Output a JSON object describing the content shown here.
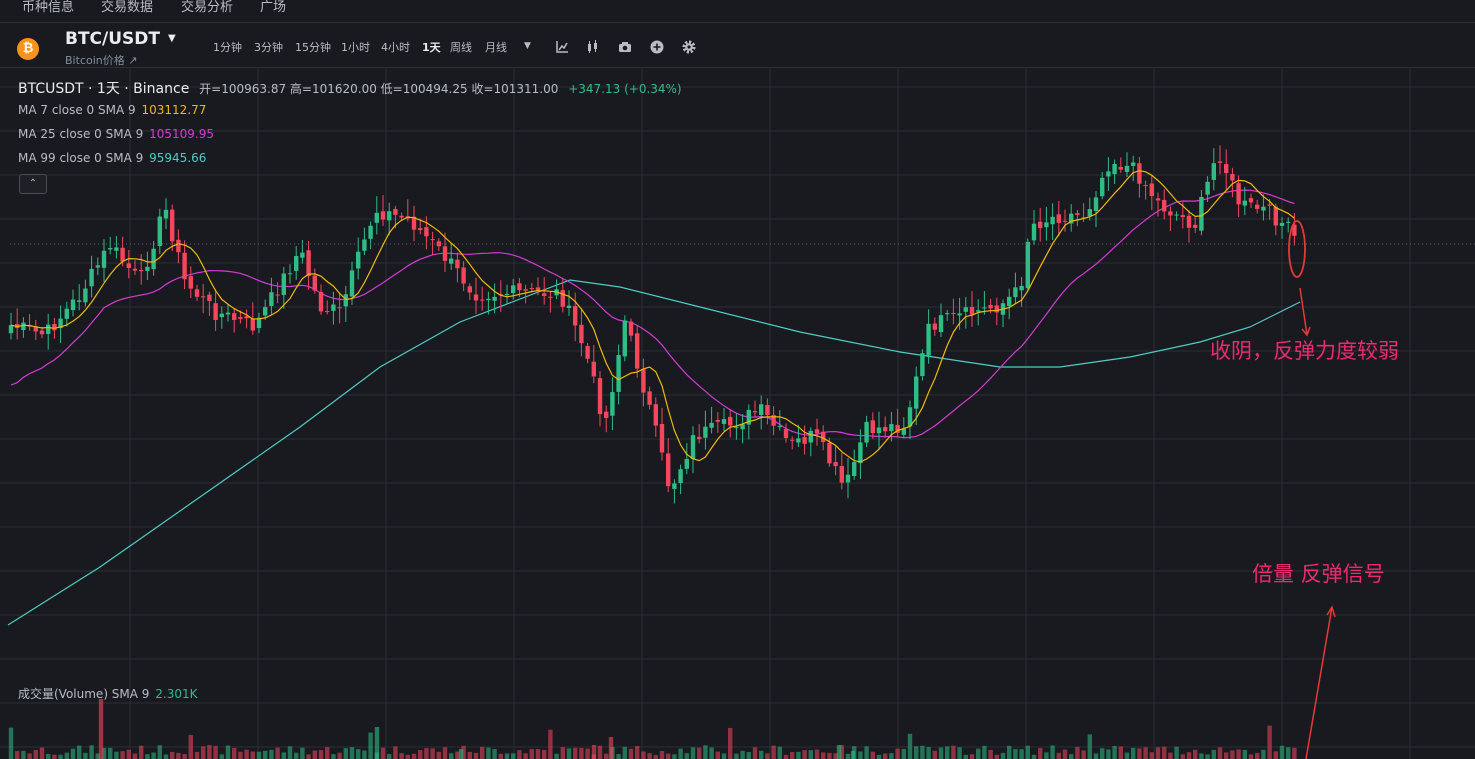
{
  "nav": {
    "items": [
      "币种信息",
      "交易数据",
      "交易分析",
      "广场"
    ]
  },
  "header": {
    "coin_icon": "bitcoin-icon",
    "coin_symbol": "₿",
    "pair": "BTC/USDT",
    "subtitle": "Bitcoin价格 ↗",
    "intervals": [
      "1分钟",
      "3分钟",
      "15分钟",
      "1小时",
      "4小时",
      "1天",
      "周线",
      "月线"
    ],
    "active_interval": "1天",
    "tools": [
      "chevron-down-icon",
      "indicator-icon",
      "candle-type-icon",
      "camera-icon",
      "add-icon",
      "settings-icon"
    ]
  },
  "legend": {
    "title": "BTCUSDT · 1天 · Binance",
    "ohlc": "开=100963.87  高=101620.00  低=100494.25  收=101311.00",
    "change": "+347.13 (+0.34%)",
    "ma7_label": "MA 7 close 0 SMA 9",
    "ma7_value": "103112.77",
    "ma25_label": "MA 25 close 0 SMA 9",
    "ma25_value": "105109.95",
    "ma99_label": "MA 99 close 0 SMA 9",
    "ma99_value": "95945.66",
    "volume_label": "成交量(Volume)  SMA 9",
    "volume_value": "2.301K",
    "collapse_symbol": "⌃"
  },
  "annotations": {
    "weak_rebound": "收阴，反弹力度较弱",
    "volume_signal": "倍量 反弹信号"
  },
  "colors": {
    "up": "#2ebd85",
    "down": "#f6465d",
    "ma7": "#f0b90b",
    "ma25": "#d63ad6",
    "ma99": "#4ecdc4",
    "annotation": "#f0286d",
    "background": "#181a20"
  }
}
